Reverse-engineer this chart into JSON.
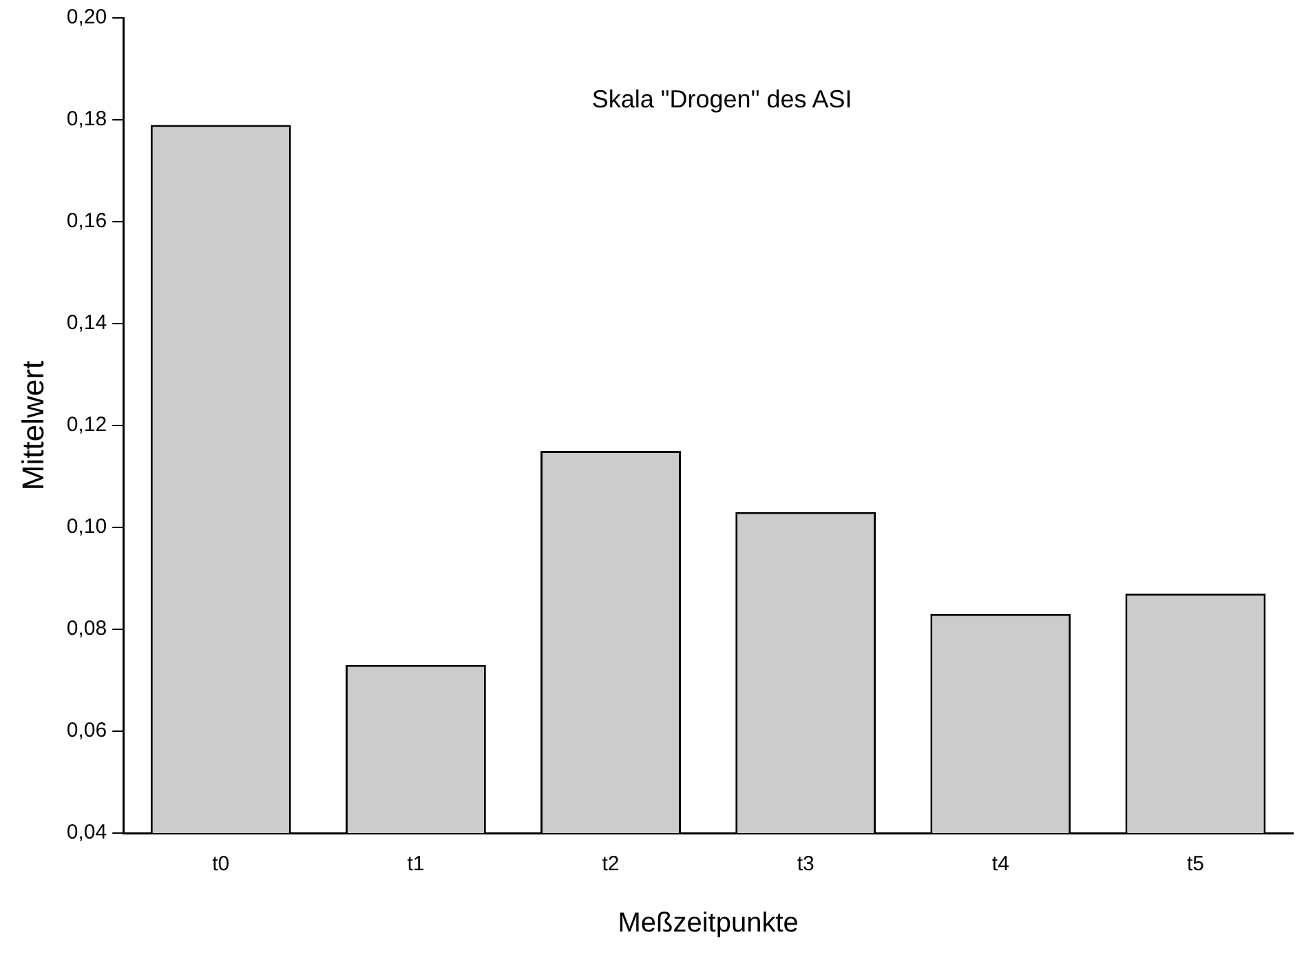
{
  "chart_data": {
    "type": "bar",
    "title": "Skala \"Drogen\" des ASI",
    "xlabel": "Meßzeitpunkte",
    "ylabel": "Mittelwert",
    "categories": [
      "t0",
      "t1",
      "t2",
      "t3",
      "t4",
      "t5"
    ],
    "values": [
      0.179,
      0.073,
      0.115,
      0.103,
      0.083,
      0.087
    ],
    "color": "#cccccc",
    "ylim": [
      0.04,
      0.2
    ],
    "yticks": [
      {
        "value": 0.04,
        "label": "0,04"
      },
      {
        "value": 0.06,
        "label": "0,06"
      },
      {
        "value": 0.08,
        "label": "0,08"
      },
      {
        "value": 0.1,
        "label": "0,10"
      },
      {
        "value": 0.12,
        "label": "0,12"
      },
      {
        "value": 0.14,
        "label": "0,14"
      },
      {
        "value": 0.16,
        "label": "0,16"
      },
      {
        "value": 0.18,
        "label": "0,18"
      },
      {
        "value": 0.2,
        "label": "0,20"
      }
    ],
    "grid": false,
    "legend": false
  }
}
